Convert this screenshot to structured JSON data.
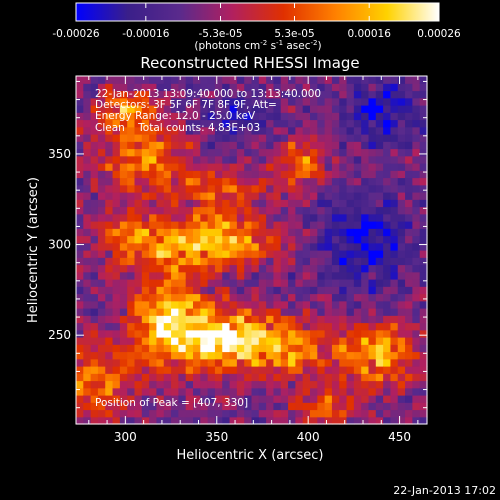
{
  "figure": {
    "title": "Reconstructed RHESSI Image",
    "footer_timestamp": "22-Jan-2013 17:02"
  },
  "colorbar": {
    "tick_labels": [
      "-0.00026",
      "-0.00016",
      "-5.3e-05",
      "5.3e-05",
      "0.00016",
      "0.00026"
    ],
    "tick_values": [
      -0.00026,
      -0.00016,
      -5.3e-05,
      5.3e-05,
      0.00016,
      0.00026
    ],
    "range": [
      -0.00026,
      0.00026
    ],
    "colormap_stops": [
      "#0000ff",
      "#3a1f8a",
      "#5a2a8c",
      "#b02060",
      "#e03000",
      "#ff8000",
      "#ffd200",
      "#ffffff"
    ],
    "unit_prefix": "(photons cm",
    "unit_exp1": "-2",
    "unit_mid": " s",
    "unit_exp2": "-1",
    "unit_suffix1": " asec",
    "unit_exp3": "-2",
    "unit_suffix2": ")"
  },
  "annotations": {
    "line1": "22-Jan-2013 13:09:40.000 to 13:13:40.000",
    "line2": "Detectors: 3F 5F 6F 7F 8F 9F, Att=",
    "line3": "Energy Range: 12.0 - 25.0 keV",
    "line4": "Clean    Total counts: 4.83E+03",
    "peak": "Position of Peak = [407, 330]"
  },
  "chart_data": {
    "type": "heatmap",
    "title": "Reconstructed RHESSI Image",
    "xlabel": "Heliocentric X (arcsec)",
    "ylabel": "Heliocentric Y (arcsec)",
    "xlim": [
      273,
      465
    ],
    "ylim": [
      201,
      393
    ],
    "x_ticks": [
      300,
      350,
      400,
      450
    ],
    "y_ticks": [
      250,
      300,
      350
    ],
    "x_tick_labels": [
      "300",
      "350",
      "400",
      "450"
    ],
    "y_tick_labels": [
      "250",
      "300",
      "350"
    ],
    "grid": false,
    "cell_size_arcsec": 4,
    "colormap": "rainbow-hot",
    "value_range": [
      -0.00026,
      0.00026
    ],
    "blobs": [
      {
        "x": 355,
        "y": 248,
        "sx": 22,
        "sy": 12,
        "amp": 1.0
      },
      {
        "x": 322,
        "y": 262,
        "sx": 14,
        "sy": 18,
        "amp": 0.8
      },
      {
        "x": 345,
        "y": 302,
        "sx": 26,
        "sy": 10,
        "amp": 0.85
      },
      {
        "x": 310,
        "y": 348,
        "sx": 18,
        "sy": 14,
        "amp": 0.6
      },
      {
        "x": 300,
        "y": 375,
        "sx": 12,
        "sy": 8,
        "amp": 0.55
      },
      {
        "x": 392,
        "y": 242,
        "sx": 14,
        "sy": 10,
        "amp": 0.55
      },
      {
        "x": 438,
        "y": 240,
        "sx": 16,
        "sy": 12,
        "amp": 0.75
      },
      {
        "x": 285,
        "y": 225,
        "sx": 14,
        "sy": 14,
        "amp": 0.55
      },
      {
        "x": 395,
        "y": 345,
        "sx": 12,
        "sy": 10,
        "amp": 0.5
      },
      {
        "x": 352,
        "y": 330,
        "sx": 16,
        "sy": 8,
        "amp": 0.5
      },
      {
        "x": 300,
        "y": 305,
        "sx": 10,
        "sy": 10,
        "amp": 0.45
      },
      {
        "x": 410,
        "y": 210,
        "sx": 12,
        "sy": 8,
        "amp": 0.5
      },
      {
        "x": 440,
        "y": 375,
        "sx": 14,
        "sy": 12,
        "amp": -0.4
      },
      {
        "x": 430,
        "y": 300,
        "sx": 18,
        "sy": 18,
        "amp": -0.45
      },
      {
        "x": 360,
        "y": 370,
        "sx": 16,
        "sy": 10,
        "amp": -0.3
      }
    ],
    "peak_position": [
      407,
      330
    ]
  }
}
